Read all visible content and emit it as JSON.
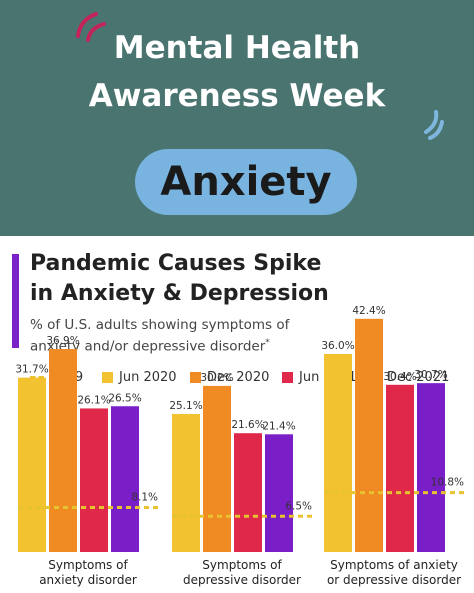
{
  "banner": {
    "title_line1": "Mental Health",
    "title_line2": "Awareness Week",
    "topic": "Anxiety",
    "bg_color": "#4a7470",
    "pill_color": "#78b4df"
  },
  "chart_header": {
    "title_line1": "Pandemic Causes Spike",
    "title_line2": "in Anxiety & Depression",
    "subtitle_line1": "% of U.S. adults showing symptoms of",
    "subtitle_line2": "anxiety and/or depressive disorder",
    "footnote_marker": "*"
  },
  "legend": {
    "items": [
      {
        "label": "2019",
        "style": "dashed-line",
        "color": "#e8c330"
      },
      {
        "label": "Jun 2020",
        "style": "box",
        "color": "#f2c230"
      },
      {
        "label": "Dec 2020",
        "style": "box",
        "color": "#f08a22"
      },
      {
        "label": "Jun 2021",
        "style": "box",
        "color": "#e0294a"
      },
      {
        "label": "Dec 2021",
        "style": "box",
        "color": "#7a1ec8"
      }
    ]
  },
  "chart_data": {
    "type": "bar",
    "categories": [
      "Symptoms of\nanxiety disorder",
      "Symptoms of\ndepressive disorder",
      "Symptoms of anxiety\nor depressive disorder"
    ],
    "series": [
      {
        "name": "Jun 2020",
        "values": [
          31.7,
          25.1,
          36.0
        ],
        "color": "#f2c230"
      },
      {
        "name": "Dec 2020",
        "values": [
          36.9,
          30.2,
          42.4
        ],
        "color": "#f08a22"
      },
      {
        "name": "Jun 2021",
        "values": [
          26.1,
          21.6,
          30.4
        ],
        "color": "#e0294a"
      },
      {
        "name": "Dec 2021",
        "values": [
          26.5,
          21.4,
          30.7
        ],
        "color": "#7a1ec8"
      }
    ],
    "baseline_series": {
      "name": "2019",
      "values": [
        8.1,
        6.5,
        10.8
      ],
      "color": "#e8c330",
      "style": "dashed"
    },
    "value_labels": {
      "series": [
        [
          "31.7%",
          "25.1%",
          "36.0%"
        ],
        [
          "36.9%",
          "30.2%",
          "42.4%"
        ],
        [
          "26.1%",
          "21.6%",
          "30.4%"
        ],
        [
          "26.5%",
          "21.4%",
          "30.7%"
        ]
      ],
      "baseline": [
        "8.1%",
        "6.5%",
        "10.8%"
      ]
    },
    "ylim": [
      0,
      45
    ],
    "grid": false,
    "legend_position": "top"
  }
}
